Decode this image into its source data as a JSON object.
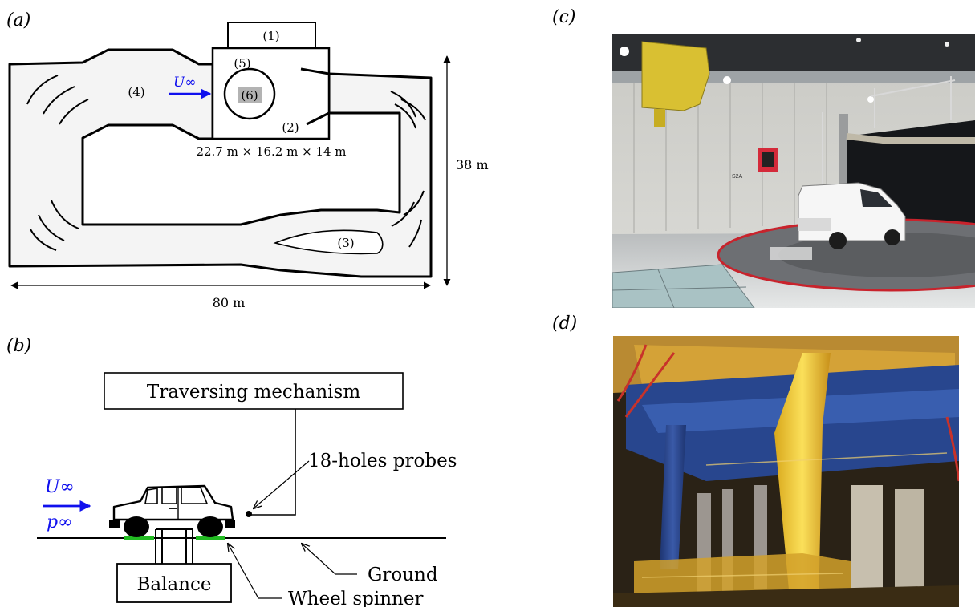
{
  "panels": {
    "a": {
      "label": "(a)",
      "parts": [
        "(1)",
        "(2)",
        "(3)",
        "(4)",
        "(5)",
        "(6)"
      ],
      "u_inf": "U∞",
      "test_section_dims": "22.7 m × 16.2 m × 14 m",
      "width_dim": "80 m",
      "height_dim": "38 m"
    },
    "b": {
      "label": "(b)",
      "traversing": "Traversing mechanism",
      "probes": "18-holes probes",
      "u_inf": "U∞",
      "p_inf": "p∞",
      "ground": "Ground",
      "balance": "Balance",
      "wheel_spinner": "Wheel spinner"
    },
    "c": {
      "label": "(c)",
      "sign_text": "S2A"
    },
    "d": {
      "label": "(d)"
    }
  },
  "colors": {
    "flow_arrow": "#1010ee",
    "ground_strip": "#22bb22",
    "tunnel_fill": "#f4f4f4"
  }
}
